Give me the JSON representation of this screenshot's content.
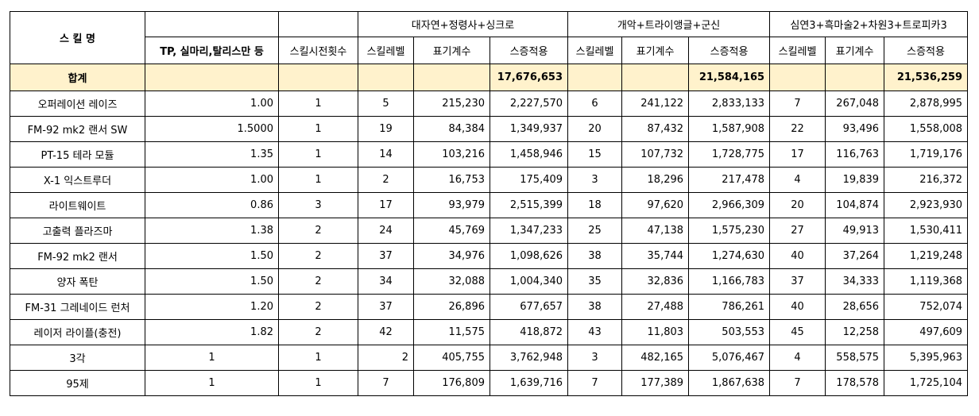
{
  "header": {
    "skill_name": "스 킬 명",
    "tp_col": "TP, 실마리,탈리스만 등",
    "cast_count": "스킬시전횟수",
    "group1": "대자연+정령사+싱크로",
    "group2": "개악+트라이앵글+군신",
    "group3": "심연3+흑마술2+차원3+트로피카3",
    "sub_level": "스킬레벨",
    "sub_coef": "표기계수",
    "sub_dmg": "스증적용"
  },
  "total": {
    "label": "합계",
    "g1_dmg": "17,676,653",
    "g2_dmg": "21,584,165",
    "g3_dmg": "21,536,259"
  },
  "rows": [
    {
      "name": "오퍼레이션 레이즈",
      "tp": "1.00",
      "casts": "1",
      "g1_lv": "5",
      "g1_coef": "215,230",
      "g1_dmg": "2,227,570",
      "g2_lv": "6",
      "g2_coef": "241,122",
      "g2_dmg": "2,833,133",
      "g3_lv": "7",
      "g3_coef": "267,048",
      "g3_dmg": "2,878,995"
    },
    {
      "name": "FM-92 mk2 랜서 SW",
      "tp": "1.5000",
      "casts": "1",
      "g1_lv": "19",
      "g1_coef": "84,384",
      "g1_dmg": "1,349,937",
      "g2_lv": "20",
      "g2_coef": "87,432",
      "g2_dmg": "1,587,908",
      "g3_lv": "22",
      "g3_coef": "93,496",
      "g3_dmg": "1,558,008"
    },
    {
      "name": "PT-15 테라 모듈",
      "tp": "1.35",
      "casts": "1",
      "g1_lv": "14",
      "g1_coef": "103,216",
      "g1_dmg": "1,458,946",
      "g2_lv": "15",
      "g2_coef": "107,732",
      "g2_dmg": "1,728,775",
      "g3_lv": "17",
      "g3_coef": "116,763",
      "g3_dmg": "1,719,176"
    },
    {
      "name": "X-1 익스트루더",
      "tp": "1.00",
      "casts": "1",
      "g1_lv": "2",
      "g1_coef": "16,753",
      "g1_dmg": "175,409",
      "g2_lv": "3",
      "g2_coef": "18,296",
      "g2_dmg": "217,478",
      "g3_lv": "4",
      "g3_coef": "19,839",
      "g3_dmg": "216,372"
    },
    {
      "name": "라이트웨이트",
      "tp": "0.86",
      "casts": "3",
      "g1_lv": "17",
      "g1_coef": "93,979",
      "g1_dmg": "2,515,399",
      "g2_lv": "18",
      "g2_coef": "97,620",
      "g2_dmg": "2,966,309",
      "g3_lv": "20",
      "g3_coef": "104,874",
      "g3_dmg": "2,923,930"
    },
    {
      "name": "고출력 플라즈마",
      "tp": "1.38",
      "casts": "2",
      "g1_lv": "24",
      "g1_coef": "45,769",
      "g1_dmg": "1,347,233",
      "g2_lv": "25",
      "g2_coef": "47,138",
      "g2_dmg": "1,575,230",
      "g3_lv": "27",
      "g3_coef": "49,913",
      "g3_dmg": "1,530,411"
    },
    {
      "name": "FM-92 mk2 랜서",
      "tp": "1.50",
      "casts": "2",
      "g1_lv": "37",
      "g1_coef": "34,976",
      "g1_dmg": "1,098,626",
      "g2_lv": "38",
      "g2_coef": "35,744",
      "g2_dmg": "1,274,630",
      "g3_lv": "40",
      "g3_coef": "37,264",
      "g3_dmg": "1,219,248"
    },
    {
      "name": "양자 폭탄",
      "tp": "1.50",
      "casts": "2",
      "g1_lv": "34",
      "g1_coef": "32,088",
      "g1_dmg": "1,004,340",
      "g2_lv": "35",
      "g2_coef": "32,836",
      "g2_dmg": "1,166,783",
      "g3_lv": "37",
      "g3_coef": "34,333",
      "g3_dmg": "1,119,368"
    },
    {
      "name": "FM-31 그레네이드 런처",
      "tp": "1.20",
      "casts": "2",
      "g1_lv": "37",
      "g1_coef": "26,896",
      "g1_dmg": "677,657",
      "g2_lv": "38",
      "g2_coef": "27,488",
      "g2_dmg": "786,261",
      "g3_lv": "40",
      "g3_coef": "28,656",
      "g3_dmg": "752,074"
    },
    {
      "name": "레이저 라이플(충전)",
      "tp": "1.82",
      "casts": "2",
      "g1_lv": "42",
      "g1_coef": "11,575",
      "g1_dmg": "418,872",
      "g2_lv": "43",
      "g2_coef": "11,803",
      "g2_dmg": "503,553",
      "g3_lv": "45",
      "g3_coef": "12,258",
      "g3_dmg": "497,609"
    },
    {
      "name": "3각",
      "tp": "1",
      "casts": "1",
      "g1_lv": "2",
      "g1_coef": "405,755",
      "g1_dmg": "3,762,948",
      "g2_lv": "3",
      "g2_coef": "482,165",
      "g2_dmg": "5,076,467",
      "g3_lv": "4",
      "g3_coef": "558,575",
      "g3_dmg": "5,395,963"
    },
    {
      "name": "95제",
      "tp": "1",
      "casts": "1",
      "g1_lv": "7",
      "g1_coef": "176,809",
      "g1_dmg": "1,639,716",
      "g2_lv": "7",
      "g2_coef": "177,389",
      "g2_dmg": "1,867,638",
      "g3_lv": "7",
      "g3_coef": "178,578",
      "g3_dmg": "1,725,104"
    }
  ],
  "colors": {
    "total_row_bg": "#fff2cc",
    "border": "#000000"
  }
}
